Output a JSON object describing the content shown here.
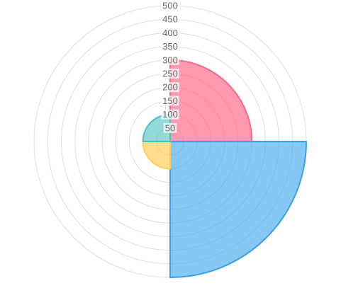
{
  "chart_data": {
    "type": "polarArea",
    "title": "",
    "r_range": [
      0,
      500
    ],
    "r_ticks": [
      "50",
      "100",
      "150",
      "200",
      "250",
      "300",
      "350",
      "400",
      "450",
      "500"
    ],
    "grid": true,
    "legend": "none",
    "categories": [
      "",
      "",
      "",
      ""
    ],
    "values": [
      300,
      500,
      100,
      100
    ],
    "colors": {
      "fills": [
        "rgba(255,99,132,0.65)",
        "rgba(54,162,235,0.6)",
        "rgba(255,205,86,0.65)",
        "rgba(75,192,192,0.6)"
      ],
      "strokes": [
        "#ff6384",
        "#36a2eb",
        "#ffcd56",
        "#4bc0c0"
      ],
      "grid": "#dddddd",
      "tick_label": "#666666"
    }
  }
}
